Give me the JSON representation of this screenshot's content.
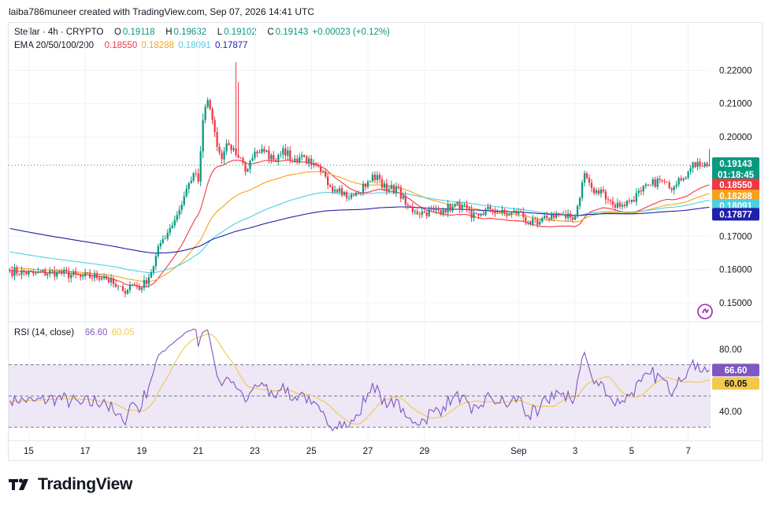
{
  "header": {
    "text": "laiba786muneer created with TradingView.com, Sep 07, 2026 14:41 UTC"
  },
  "legend": {
    "symbol": "Stellar · 4h · CRYPTO",
    "o_label": "O",
    "o": "0.19118",
    "h_label": "H",
    "h": "0.19632",
    "l_label": "L",
    "l": "0.19102",
    "c_label": "C",
    "c": "0.19143",
    "change": "+0.00023 (+0.12%)",
    "ema_label": "EMA 20/50/100/200",
    "ema20": "0.18550",
    "ema50": "0.18288",
    "ema100": "0.18091",
    "ema200": "0.17877",
    "rsi_label": "RSI (14, close)",
    "rsi": "66.60",
    "rsi_ma": "60.05"
  },
  "badges": {
    "price": "0.19143",
    "countdown": "01:18:45",
    "ema20": "0.18550",
    "ema50": "0.18288",
    "ema100": "0.18091",
    "ema200": "0.17877",
    "rsi": "66.60",
    "rsi_ma": "60.05"
  },
  "colors": {
    "up": "#089981",
    "down": "#f23645",
    "ema20": "#f23645",
    "ema50": "#f7a21b",
    "ema100": "#4dd0e1",
    "ema200": "#1e22aa",
    "rsi": "#7e57c2",
    "rsi_ma": "#f2c94c",
    "rsi_band": "#ede7f6"
  },
  "logo": {
    "text": "TradingView",
    "icon": "tradingview-logo-icon"
  },
  "chart_data": {
    "type": "candlestick",
    "price_axis": {
      "ticks": [
        "0.22000",
        "0.21000",
        "0.20000",
        "0.17000",
        "0.16000",
        "0.15000"
      ],
      "tick_values": [
        0.22,
        0.21,
        0.2,
        0.17,
        0.16,
        0.15
      ],
      "range": [
        0.1445,
        0.2265
      ]
    },
    "x_axis": {
      "labels": [
        "15",
        "17",
        "19",
        "21",
        "23",
        "25",
        "27",
        "29",
        "Sep",
        "3",
        "5",
        "7"
      ],
      "label_index": [
        8,
        32,
        56,
        80,
        104,
        128,
        152,
        176,
        216,
        240,
        264,
        288
      ],
      "count": 298
    },
    "anchors": {
      "close_index": [
        0,
        10,
        20,
        30,
        40,
        45,
        48,
        52,
        56,
        60,
        64,
        68,
        72,
        76,
        78,
        80,
        82,
        84,
        86,
        88,
        90,
        92,
        94,
        96,
        98,
        100,
        104,
        108,
        112,
        116,
        120,
        124,
        128,
        132,
        136,
        140,
        144,
        148,
        152,
        156,
        160,
        164,
        168,
        172,
        176,
        180,
        184,
        188,
        192,
        196,
        200,
        204,
        208,
        212,
        216,
        220,
        224,
        228,
        232,
        236,
        240,
        244,
        248,
        252,
        256,
        260,
        264,
        268,
        272,
        276,
        280,
        284,
        288,
        292,
        296,
        297
      ],
      "close_value": [
        0.1595,
        0.1588,
        0.1592,
        0.1578,
        0.158,
        0.1548,
        0.1535,
        0.1555,
        0.1545,
        0.1592,
        0.168,
        0.1725,
        0.178,
        0.186,
        0.189,
        0.1865,
        0.205,
        0.211,
        0.205,
        0.197,
        0.1932,
        0.198,
        0.196,
        0.1945,
        0.1935,
        0.1895,
        0.1955,
        0.1955,
        0.193,
        0.1965,
        0.1925,
        0.1945,
        0.1915,
        0.1895,
        0.185,
        0.1845,
        0.1815,
        0.183,
        0.1865,
        0.1885,
        0.1835,
        0.185,
        0.1795,
        0.1775,
        0.1772,
        0.1778,
        0.178,
        0.179,
        0.1795,
        0.1755,
        0.1768,
        0.1782,
        0.177,
        0.1765,
        0.1775,
        0.1745,
        0.1735,
        0.1755,
        0.177,
        0.1755,
        0.176,
        0.189,
        0.183,
        0.1835,
        0.1795,
        0.1795,
        0.181,
        0.1835,
        0.1855,
        0.187,
        0.1845,
        0.1875,
        0.1895,
        0.1925,
        0.1912,
        0.19143
      ]
    },
    "emas": [
      {
        "name": "EMA 20",
        "last": 0.1855
      },
      {
        "name": "EMA 50",
        "last": 0.18288
      },
      {
        "name": "EMA 100",
        "last": 0.18091
      },
      {
        "name": "EMA 200",
        "last": 0.17877
      }
    ],
    "rsi": {
      "name": "RSI (14, close)",
      "ticks": [
        "80.00",
        "40.00"
      ],
      "tick_values": [
        80,
        40
      ],
      "bands": [
        70,
        50,
        30
      ],
      "range": [
        25,
        95
      ],
      "last": 66.6,
      "ma_last": 60.05
    }
  }
}
